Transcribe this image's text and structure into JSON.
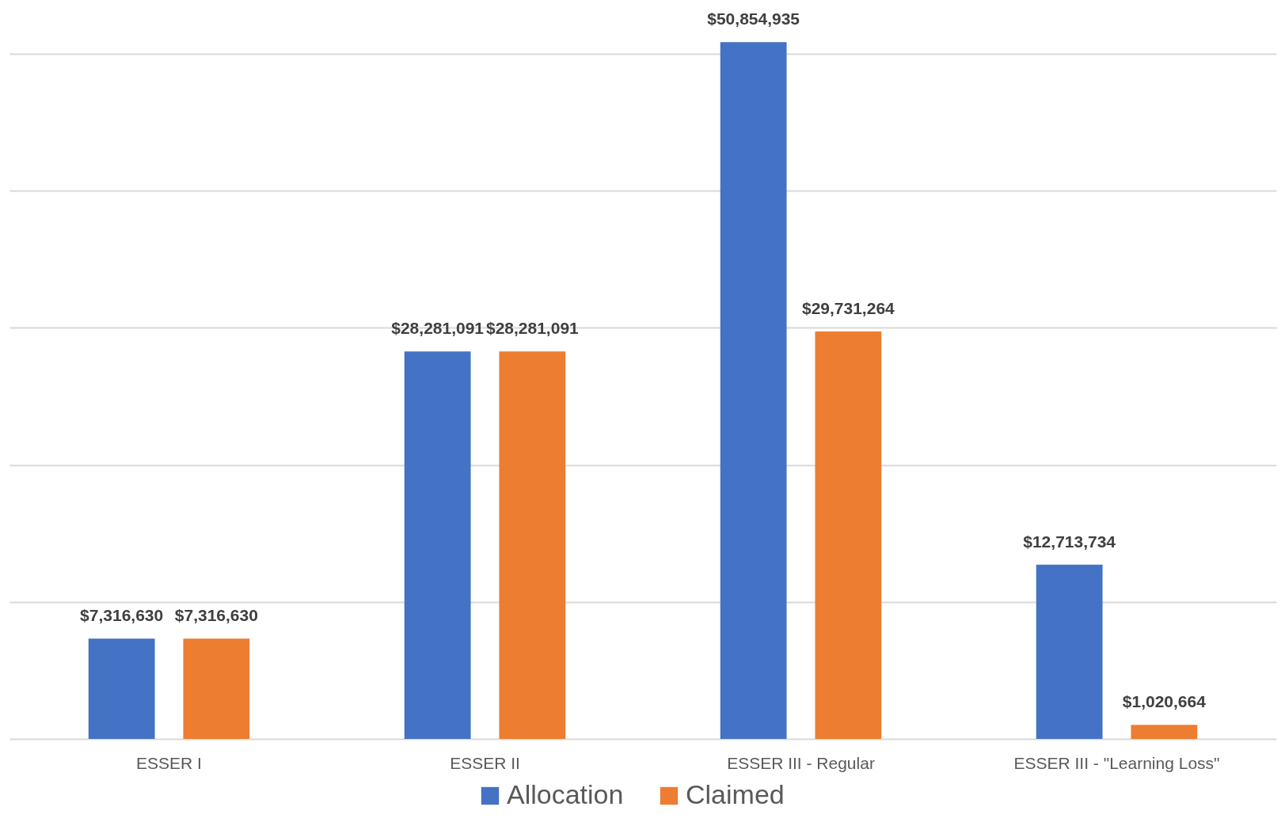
{
  "chart_data": {
    "type": "bar",
    "categories": [
      "ESSER I",
      "ESSER II",
      "ESSER III - Regular",
      "ESSER III - \"Learning Loss\""
    ],
    "series": [
      {
        "name": "Allocation",
        "color": "#4472c4",
        "values": [
          7316630,
          28281091,
          50854935,
          12713734
        ],
        "value_labels": [
          "$7,316,630",
          "$28,281,091",
          "$50,854,935",
          "$12,713,734"
        ]
      },
      {
        "name": "Claimed",
        "color": "#ed7d31",
        "values": [
          7316630,
          28281091,
          29731264,
          1020664
        ],
        "value_labels": [
          "$7,316,630",
          "$28,281,091",
          "$29,731,264",
          "$1,020,664"
        ]
      }
    ],
    "ylim": [
      0,
      53700000
    ],
    "yticks": [
      {
        "value": 0,
        "label": null
      },
      {
        "value": 10000000,
        "label": null
      },
      {
        "value": 20000000,
        "label": null
      },
      {
        "value": 30000000,
        "label": null
      },
      {
        "value": 40000000,
        "label": null
      },
      {
        "value": 50000000,
        "label": null
      }
    ],
    "tick_labels": "x",
    "grid": "y",
    "legend": "bottom"
  }
}
